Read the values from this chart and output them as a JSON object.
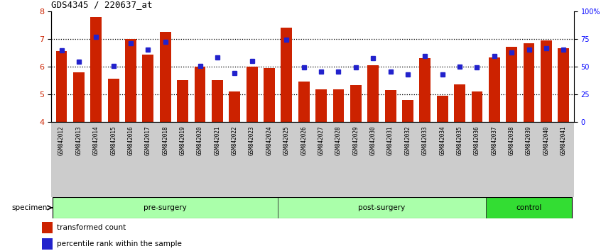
{
  "title": "GDS4345 / 220637_at",
  "samples": [
    "GSM842012",
    "GSM842013",
    "GSM842014",
    "GSM842015",
    "GSM842016",
    "GSM842017",
    "GSM842018",
    "GSM842019",
    "GSM842020",
    "GSM842021",
    "GSM842022",
    "GSM842023",
    "GSM842024",
    "GSM842025",
    "GSM842026",
    "GSM842027",
    "GSM842028",
    "GSM842029",
    "GSM842030",
    "GSM842031",
    "GSM842032",
    "GSM842033",
    "GSM842034",
    "GSM842035",
    "GSM842036",
    "GSM842037",
    "GSM842038",
    "GSM842039",
    "GSM842040",
    "GSM842041"
  ],
  "bar_values": [
    6.55,
    5.78,
    7.78,
    5.55,
    7.0,
    6.43,
    7.25,
    5.5,
    6.0,
    5.5,
    5.1,
    6.0,
    5.95,
    7.42,
    5.45,
    5.18,
    5.18,
    5.32,
    6.05,
    5.15,
    4.8,
    6.3,
    4.93,
    5.35,
    5.1,
    6.32,
    6.72,
    6.85,
    6.95,
    6.67
  ],
  "dot_values": [
    6.58,
    6.17,
    7.08,
    6.02,
    6.83,
    6.6,
    6.9,
    null,
    6.03,
    6.32,
    5.77,
    6.2,
    null,
    6.97,
    5.98,
    5.82,
    5.82,
    5.97,
    6.3,
    5.82,
    5.7,
    6.38,
    5.7,
    6.0,
    5.98,
    6.37,
    6.5,
    6.62,
    6.67,
    6.62
  ],
  "bar_color": "#CC2200",
  "dot_color": "#2222CC",
  "bar_bottom": 4.0,
  "ylim": [
    4.0,
    8.0
  ],
  "yticks_left": [
    4,
    5,
    6,
    7,
    8
  ],
  "dotted_lines": [
    5.0,
    6.0,
    7.0
  ],
  "right_pct_labels": [
    "0",
    "25",
    "50",
    "75",
    "100%"
  ],
  "right_pct_vals": [
    0,
    25,
    50,
    75,
    100
  ],
  "legend_bar": "transformed count",
  "legend_dot": "percentile rank within the sample",
  "groups": [
    {
      "label": "pre-surgery",
      "start": 0,
      "end": 13,
      "color": "#AAFFAA"
    },
    {
      "label": "post-surgery",
      "start": 13,
      "end": 25,
      "color": "#AAFFAA"
    },
    {
      "label": "control",
      "start": 25,
      "end": 30,
      "color": "#33DD33"
    }
  ],
  "specimen_label": "specimen",
  "tick_bg_color": "#CCCCCC",
  "plot_bg": "white"
}
